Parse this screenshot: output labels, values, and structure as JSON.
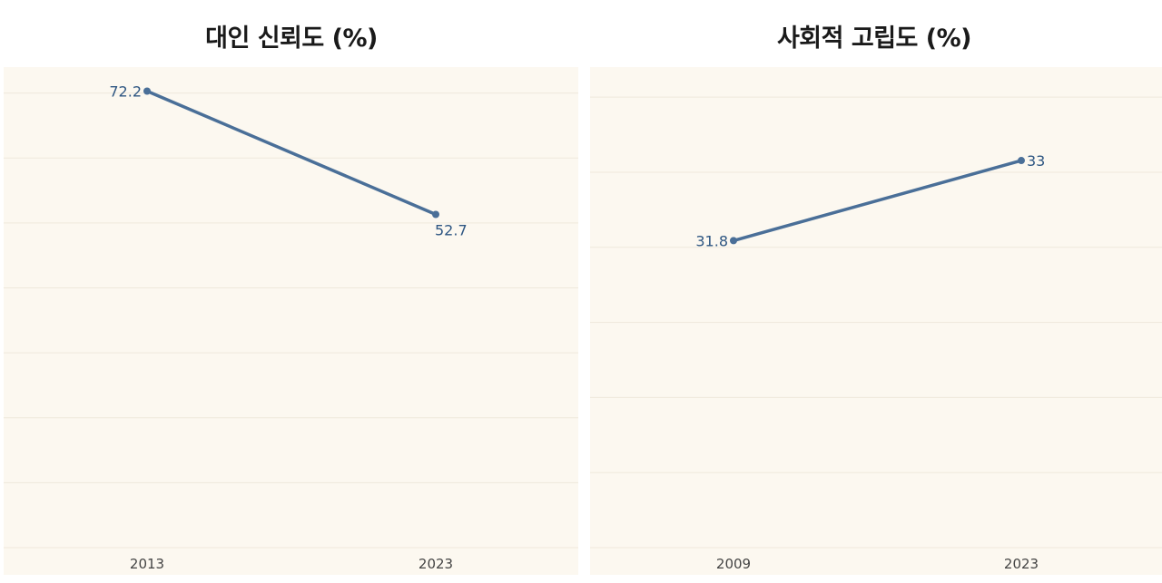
{
  "chart_data": [
    {
      "type": "line",
      "title": "대인 신뢰도 (%)",
      "x": [
        "2013",
        "2023"
      ],
      "values": [
        72.2,
        52.7
      ],
      "data_labels": [
        "72.2",
        "52.7"
      ],
      "ylim": [
        0,
        76
      ],
      "grid": true,
      "color": "#4a6f98"
    },
    {
      "type": "line",
      "title": "사회적 고립도 (%)",
      "x": [
        "2009",
        "2023"
      ],
      "values": [
        31.8,
        33
      ],
      "data_labels": [
        "31.8",
        "33"
      ],
      "ylim": [
        27.2,
        34.4
      ],
      "grid": true,
      "color": "#4a6f98"
    }
  ]
}
